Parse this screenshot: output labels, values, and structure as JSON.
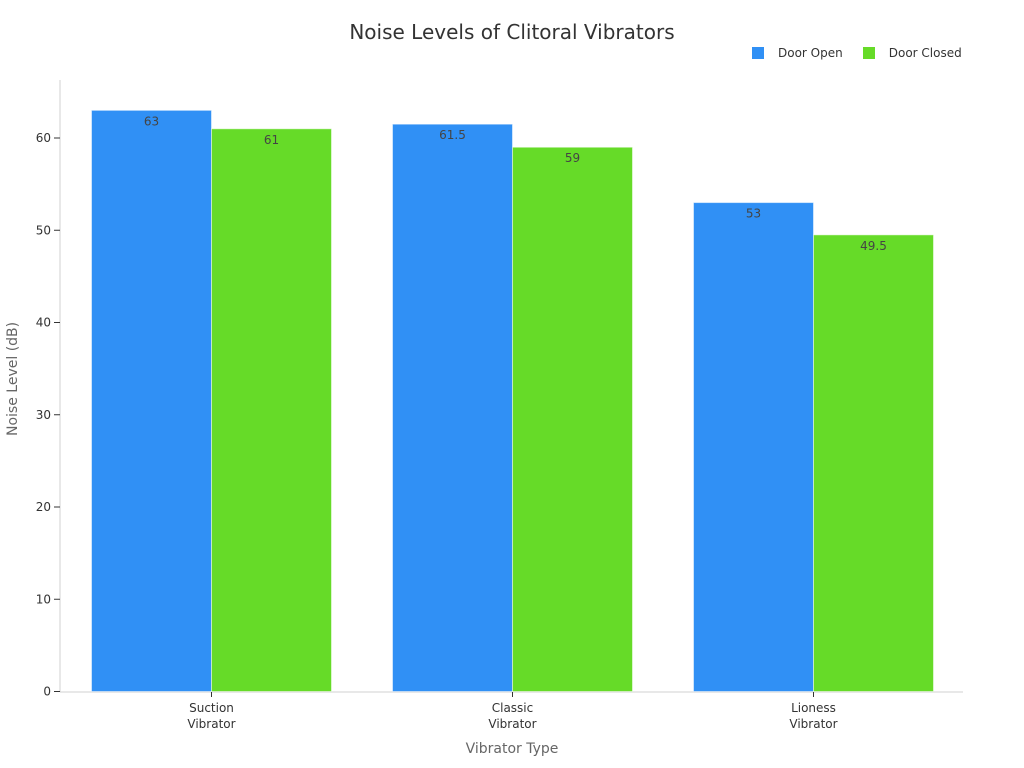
{
  "title": "Noise Levels of Clitoral Vibrators",
  "legend": [
    {
      "label": "Door Open",
      "color": "#3090f5"
    },
    {
      "label": "Door Closed",
      "color": "#66db28"
    }
  ],
  "axes": {
    "x_title": "Vibrator Type",
    "y_title": "Noise Level (dB)",
    "y_ticks": [
      "0",
      "10",
      "20",
      "30",
      "40",
      "50",
      "60"
    ]
  },
  "chart_data": {
    "type": "bar",
    "title": "Noise Levels of Clitoral Vibrators",
    "xlabel": "Vibrator Type",
    "ylabel": "Noise Level (dB)",
    "categories": [
      "Suction Vibrator",
      "Classic Vibrator",
      "Lioness Vibrator"
    ],
    "series": [
      {
        "name": "Door Open",
        "color": "#3090f5",
        "values": [
          63,
          61.5,
          53
        ]
      },
      {
        "name": "Door Closed",
        "color": "#66db28",
        "values": [
          61,
          59,
          49.5
        ]
      }
    ],
    "ylim": [
      0,
      66
    ],
    "y_ticks": [
      0,
      10,
      20,
      30,
      40,
      50,
      60
    ],
    "grid": false,
    "legend_position": "top-right",
    "data_labels": true
  }
}
